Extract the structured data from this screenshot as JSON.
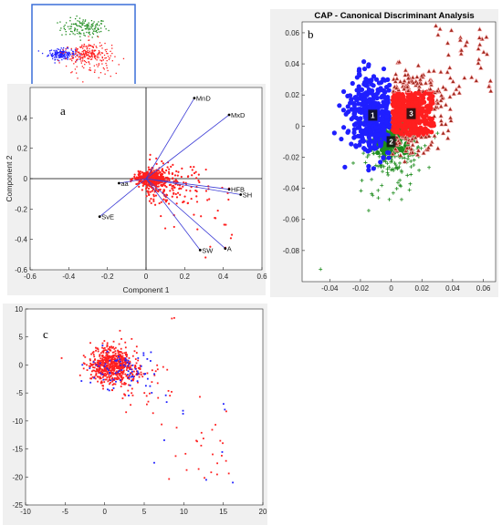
{
  "colors": {
    "blue": "#1f1fff",
    "green": "#1e8c1e",
    "red": "#ff1f1f",
    "brown": "#a0281e",
    "loading": "#3c3cd6",
    "inset_border": "#3a6fd8",
    "panel_bg": "#f0f0f0"
  },
  "chart_data": [
    {
      "id": "inset",
      "type": "scatter",
      "clusters": [
        {
          "color": "green",
          "center": [
            2.0,
            5.0
          ],
          "spread": [
            1.4,
            0.9
          ],
          "n": 140,
          "marker": "cross"
        },
        {
          "color": "blue",
          "center": [
            -0.7,
            0.0
          ],
          "spread": [
            0.8,
            0.5
          ],
          "n": 180,
          "marker": "dot"
        },
        {
          "color": "red",
          "center": [
            2.2,
            0.2
          ],
          "spread": [
            1.3,
            1.0
          ],
          "n": 260,
          "marker": "dot"
        }
      ]
    },
    {
      "id": "a",
      "type": "scatter",
      "panel_label": "a",
      "xlabel": "Component 1",
      "ylabel": "Component 2",
      "xlim": [
        -0.6,
        0.6
      ],
      "ylim": [
        -0.6,
        0.6
      ],
      "xticks": [
        "-0.6",
        "-0.4",
        "-0.2",
        "0",
        "0.2",
        "0.4",
        "0.6"
      ],
      "yticks": [
        "-0.6",
        "-0.4",
        "-0.2",
        "0",
        "0.2",
        "0.4"
      ],
      "loadings": [
        {
          "label": "MnD",
          "x": 0.25,
          "y": 0.53
        },
        {
          "label": "MxD",
          "x": 0.43,
          "y": 0.42
        },
        {
          "label": "HFB",
          "x": 0.43,
          "y": -0.07
        },
        {
          "label": "SH",
          "x": 0.49,
          "y": -0.105
        },
        {
          "label": "SW",
          "x": 0.28,
          "y": -0.47
        },
        {
          "label": "A",
          "x": 0.41,
          "y": -0.46
        },
        {
          "label": "aa",
          "x": -0.14,
          "y": -0.03
        },
        {
          "label": "SvE",
          "x": -0.24,
          "y": -0.25
        }
      ]
    },
    {
      "id": "b",
      "type": "scatter",
      "title": "CAP - Canonical Discriminant Analysis",
      "panel_label": "b",
      "xlim": [
        -0.058,
        0.068
      ],
      "ylim": [
        -0.1,
        0.067
      ],
      "xticks": [
        "-0.04",
        "-0.02",
        "0",
        "0.02",
        "0.04",
        "0.06"
      ],
      "yticks": [
        "0.06",
        "0.04",
        "0.02",
        "0",
        "-0.02",
        "-0.04",
        "-0.06",
        "-0.08"
      ],
      "groups": [
        {
          "label": "1",
          "color": "blue",
          "centroid": [
            -0.012,
            0.007
          ],
          "spread": [
            0.008,
            0.012
          ],
          "n": 420,
          "marker": "circle"
        },
        {
          "label": "2",
          "color": "green",
          "centroid": [
            0.0,
            -0.01
          ],
          "spread": [
            0.008,
            0.008
          ],
          "n": 300,
          "marker": "plus"
        },
        {
          "label": "3",
          "color": "red",
          "centroid": [
            0.013,
            0.008
          ],
          "spread": [
            0.01,
            0.011
          ],
          "n": 520,
          "marker": "triangle"
        }
      ]
    },
    {
      "id": "c",
      "type": "scatter",
      "panel_label": "c",
      "xlim": [
        -10,
        20
      ],
      "ylim": [
        -25,
        10
      ],
      "xticks": [
        "-10",
        "-5",
        "0",
        "5",
        "10",
        "15",
        "20"
      ],
      "yticks": [
        "10",
        "5",
        "0",
        "-5",
        "-10",
        "-15",
        "-20",
        "-25"
      ],
      "clusters": [
        {
          "color": "red",
          "center": [
            0.8,
            0.0
          ],
          "spread": [
            1.3,
            1.6
          ],
          "n": 700
        },
        {
          "color": "blue",
          "center": [
            2.0,
            -0.5
          ],
          "spread": [
            2.0,
            2.0
          ],
          "n": 90
        }
      ]
    }
  ]
}
